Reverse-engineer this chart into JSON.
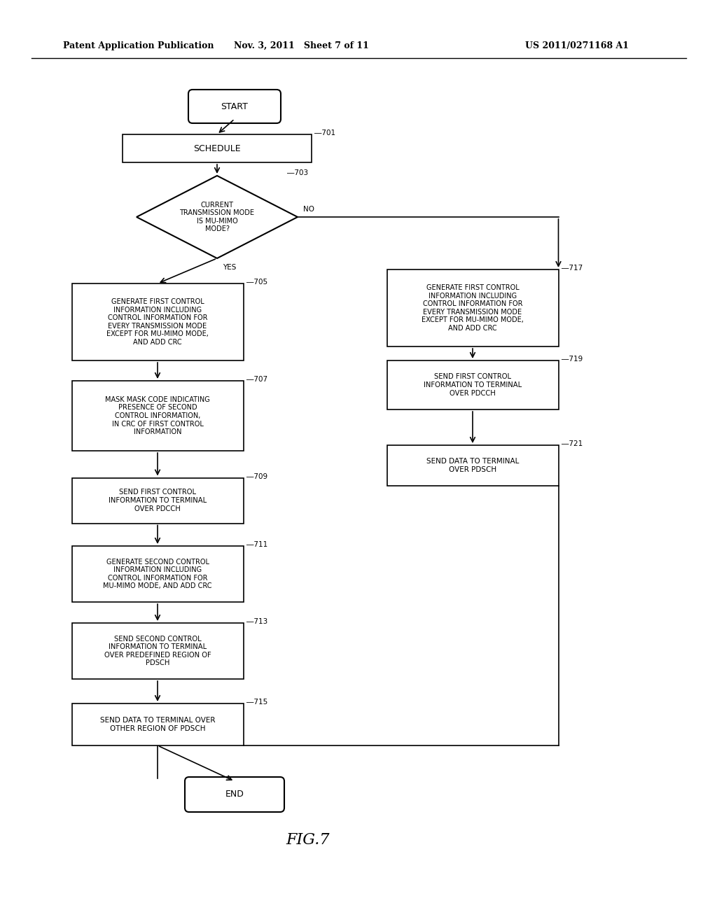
{
  "header_left": "Patent Application Publication",
  "header_mid": "Nov. 3, 2011   Sheet 7 of 11",
  "header_right": "US 2011/0271168 A1",
  "bg_color": "#ffffff",
  "fig_label": "FIG.7",
  "nodes": {
    "start": {
      "label": "START"
    },
    "701": {
      "label": "SCHEDULE",
      "tag": "701"
    },
    "703": {
      "label": "CURRENT\nTRANSMISSION MODE\nIS MU-MIMO\nMODE?",
      "tag": "703"
    },
    "705": {
      "label": "GENERATE FIRST CONTROL\nINFORMATION INCLUDING\nCONTROL INFORMATION FOR\nEVERY TRANSMISSION MODE\nEXCEPT FOR MU-MIMO MODE,\nAND ADD CRC",
      "tag": "705"
    },
    "717": {
      "label": "GENERATE FIRST CONTROL\nINFORMATION INCLUDING\nCONTROL INFORMATION FOR\nEVERY TRANSMISSION MODE\nEXCEPT FOR MU-MIMO MODE,\nAND ADD CRC",
      "tag": "717"
    },
    "707": {
      "label": "MASK MASK CODE INDICATING\nPRESENCE OF SECOND\nCONTROL INFORMATION,\nIN CRC OF FIRST CONTROL\nINFORMATION",
      "tag": "707"
    },
    "719": {
      "label": "SEND FIRST CONTROL\nINFORMATION TO TERMINAL\nOVER PDCCH",
      "tag": "719"
    },
    "709": {
      "label": "SEND FIRST CONTROL\nINFORMATION TO TERMINAL\nOVER PDCCH",
      "tag": "709"
    },
    "721": {
      "label": "SEND DATA TO TERMINAL\nOVER PDSCH",
      "tag": "721"
    },
    "711": {
      "label": "GENERATE SECOND CONTROL\nINFORMATION INCLUDING\nCONTROL INFORMATION FOR\nMU-MIMO MODE, AND ADD CRC",
      "tag": "711"
    },
    "713": {
      "label": "SEND SECOND CONTROL\nINFORMATION TO TERMINAL\nOVER PREDEFINED REGION OF\nPDSCH",
      "tag": "713"
    },
    "715": {
      "label": "SEND DATA TO TERMINAL OVER\nOTHER REGION OF PDSCH",
      "tag": "715"
    },
    "end": {
      "label": "END"
    }
  }
}
